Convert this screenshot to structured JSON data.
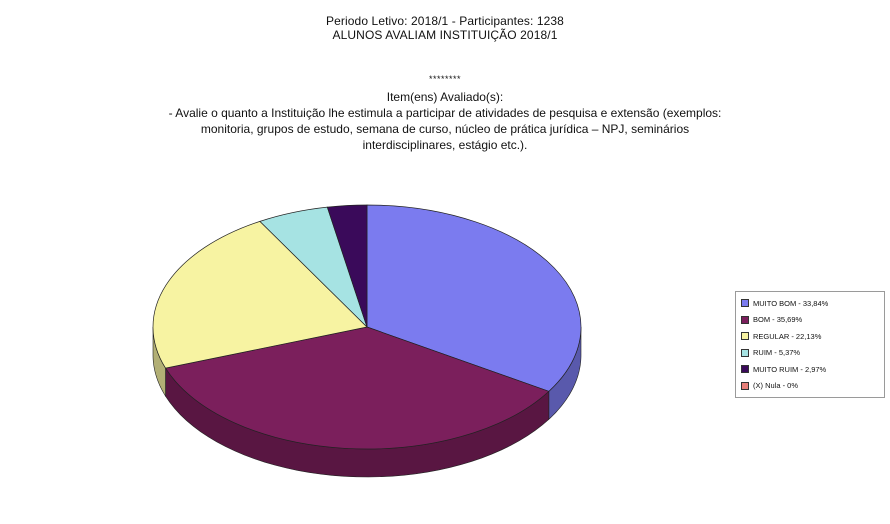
{
  "header": {
    "period_line": "Periodo Letivo: 2018/1 - Participantes: 1238",
    "survey_title": "ALUNOS AVALIAM INSTITUIÇÃO 2018/1"
  },
  "separator": "********",
  "items_title": "Item(ens) Avaliado(s):",
  "question": {
    "line1": "- Avalie o quanto a Instituição lhe estimula a participar de atividades de pesquisa e extensão (exemplos:",
    "line2": "monitoria, grupos de estudo, semana de curso, núcleo de prática jurídica – NPJ, seminários",
    "line3": "interdisciplinares, estágio etc.)."
  },
  "chart_data": {
    "type": "pie",
    "title": "",
    "legend_position": "right",
    "slices": [
      {
        "label": "MUITO BOM - 33,84%",
        "value": 33.84,
        "color": "#7b7bef"
      },
      {
        "label": "BOM - 35,69%",
        "value": 35.69,
        "color": "#7b1f5c"
      },
      {
        "label": "REGULAR - 22,13%",
        "value": 22.13,
        "color": "#f7f3a2"
      },
      {
        "label": "RUIM - 5,37%",
        "value": 5.37,
        "color": "#a6e3e3"
      },
      {
        "label": "MUITO RUIM - 2,97%",
        "value": 2.97,
        "color": "#3a0a5a"
      },
      {
        "label": "(X) Nula - 0%",
        "value": 0,
        "color": "#e8807a"
      }
    ]
  }
}
